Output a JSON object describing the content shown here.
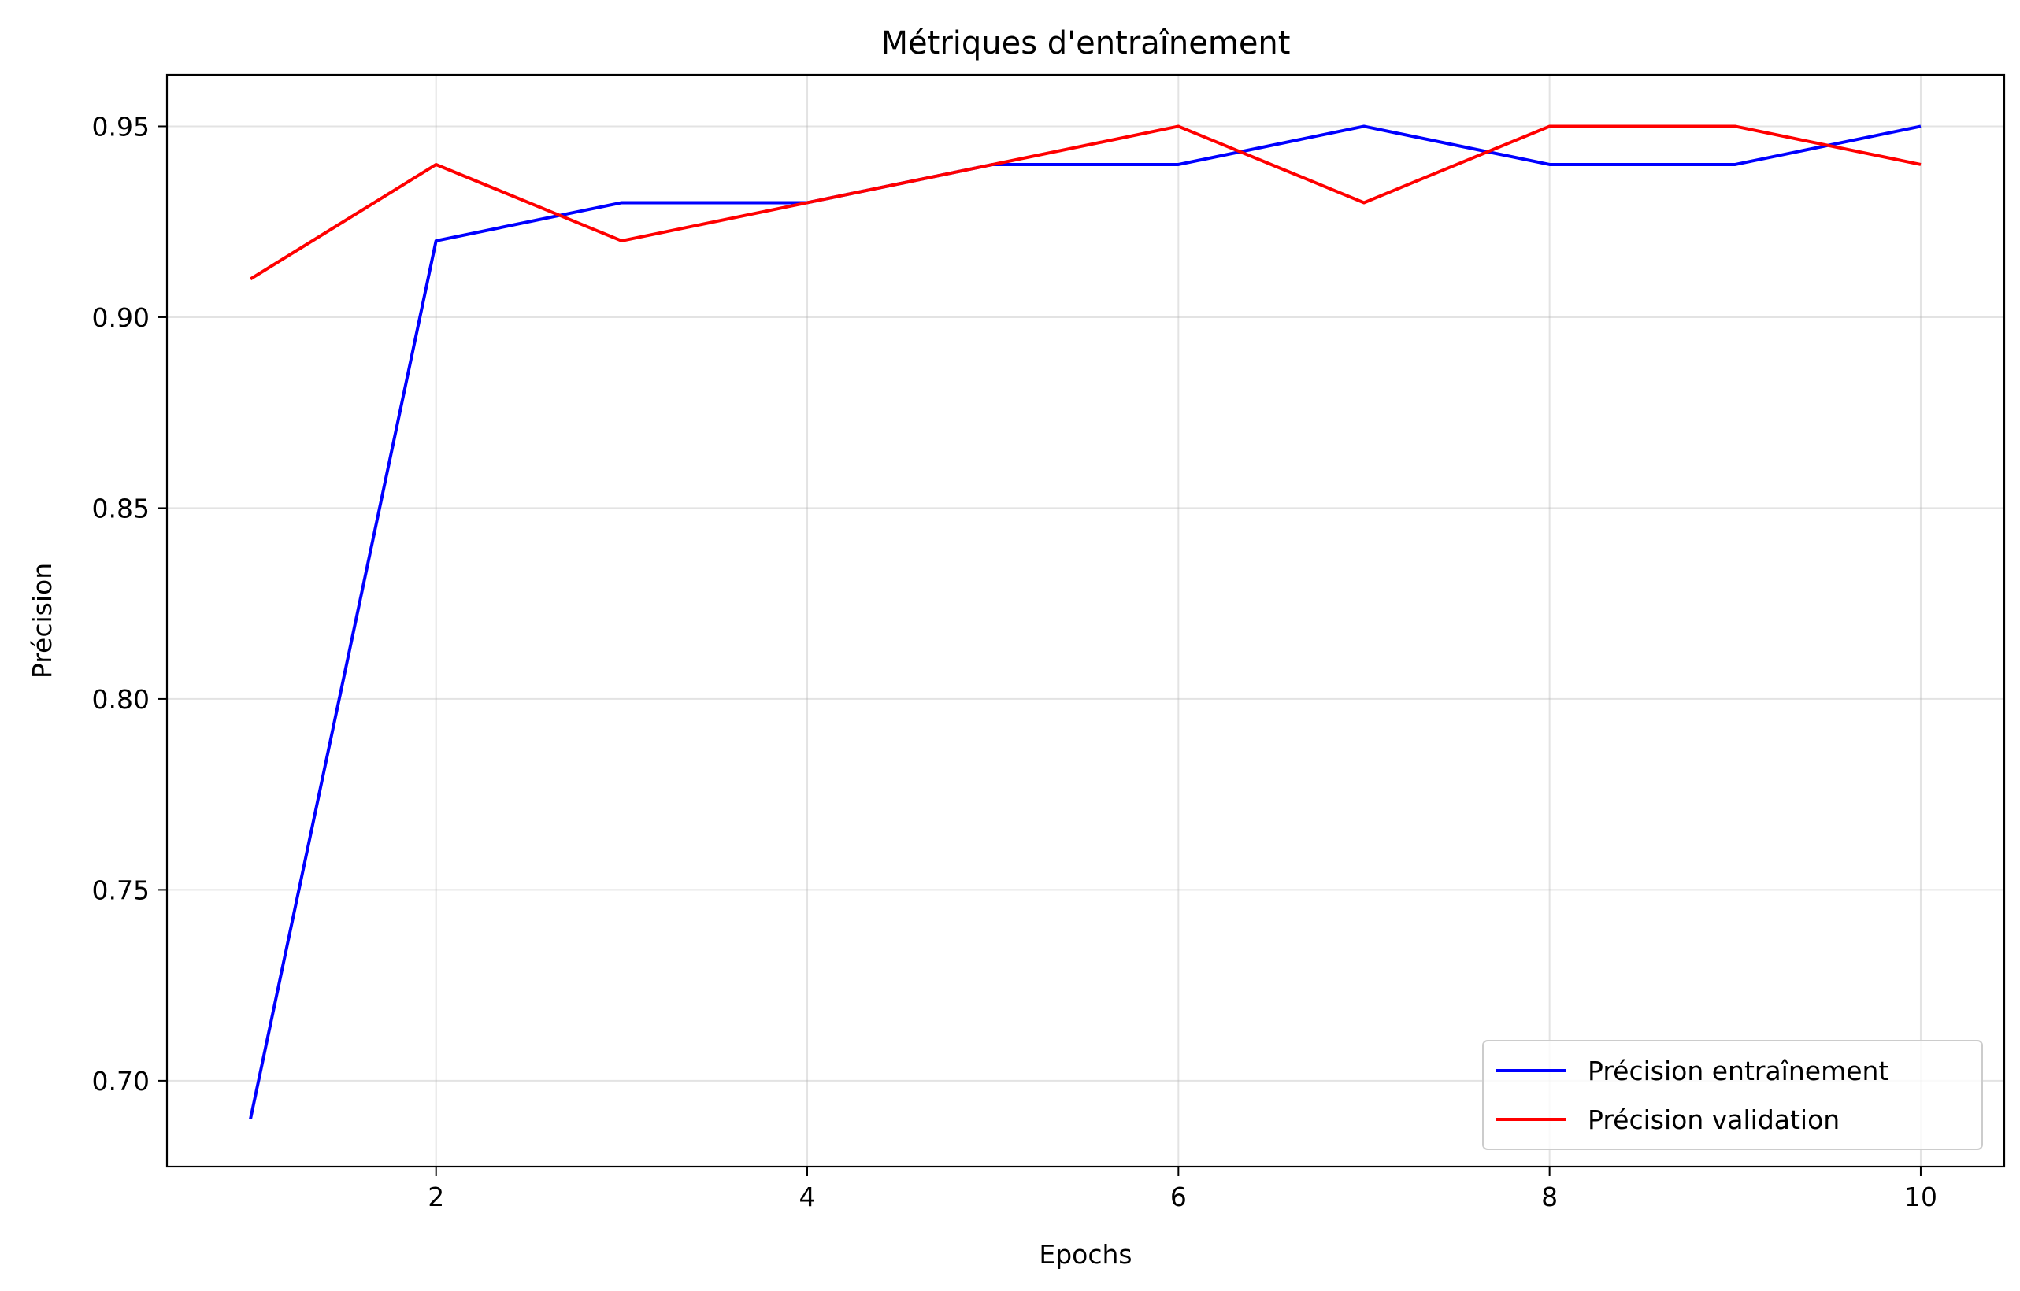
{
  "chart_data": {
    "type": "line",
    "title": "Métriques d'entraînement",
    "xlabel": "Epochs",
    "ylabel": "Précision",
    "xlim": [
      0.55,
      10.45
    ],
    "ylim": [
      0.6775,
      0.9635
    ],
    "xticks": [
      2,
      4,
      6,
      8,
      10
    ],
    "xtick_labels": [
      "2",
      "4",
      "6",
      "8",
      "10"
    ],
    "yticks": [
      0.7,
      0.75,
      0.8,
      0.85,
      0.9,
      0.95
    ],
    "ytick_labels": [
      "0.70",
      "0.75",
      "0.80",
      "0.85",
      "0.90",
      "0.95"
    ],
    "grid": true,
    "legend_position": "lower-right",
    "x": [
      1,
      2,
      3,
      4,
      5,
      6,
      7,
      8,
      9,
      10
    ],
    "series": [
      {
        "name": "Précision entraînement",
        "color": "#0000ff",
        "values": [
          0.69,
          0.92,
          0.93,
          0.93,
          0.94,
          0.94,
          0.95,
          0.94,
          0.94,
          0.95
        ]
      },
      {
        "name": "Précision validation",
        "color": "#ff0000",
        "values": [
          0.91,
          0.94,
          0.92,
          0.93,
          0.94,
          0.95,
          0.93,
          0.95,
          0.95,
          0.94
        ]
      }
    ]
  }
}
